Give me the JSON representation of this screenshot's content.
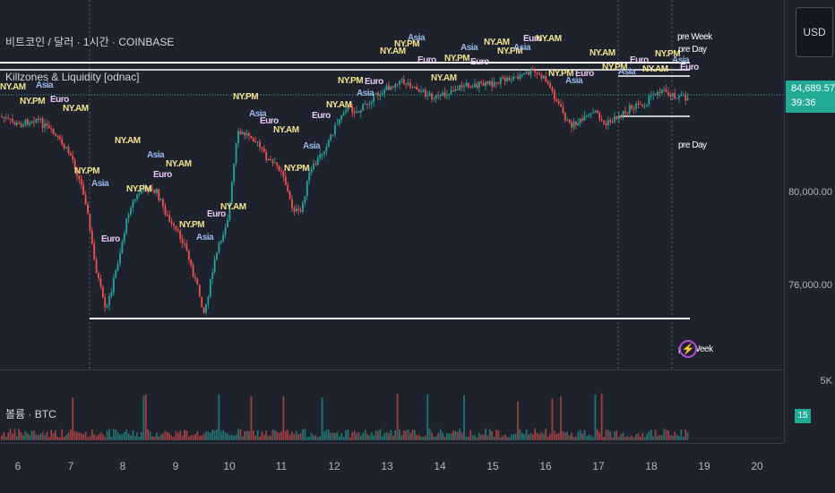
{
  "header": {
    "symbol_line": "비트코인 / 달러 · 1시간 · COINBASE",
    "indicator_line": "Killzones & Liquidity [odnac]"
  },
  "currency_button": "USD",
  "price_badge": {
    "price": "84,689.57",
    "timer": "39:36",
    "color": "#22ab94"
  },
  "price_axis": [
    "80,000.00",
    "76,000.00",
    "5K"
  ],
  "volume": {
    "label": "볼륨 · BTC",
    "badge": "15"
  },
  "time_axis": [
    "6",
    "7",
    "8",
    "9",
    "10",
    "11",
    "12",
    "13",
    "14",
    "15",
    "16",
    "17",
    "18",
    "19",
    "20"
  ],
  "session_labels": {
    "ny_am": "NY.AM",
    "ny_pm": "NY.PM",
    "asia": "Asia",
    "euro": "Euro"
  },
  "level_labels": {
    "pre_week": "pre Week",
    "pre_day": "pre Day",
    "pre_week_bottom": "pre Week"
  },
  "colors": {
    "background": "#1e222d",
    "up_candle": "#26a69a",
    "down_candle": "#ef5350",
    "level_line": "#ffffff",
    "current_price_line": "#22ab94",
    "session_ny": "#f4e38f",
    "session_asia": "#9ab8e8",
    "session_euro": "#e8c8f4"
  },
  "icons": {
    "alert": "lightning-icon"
  }
}
